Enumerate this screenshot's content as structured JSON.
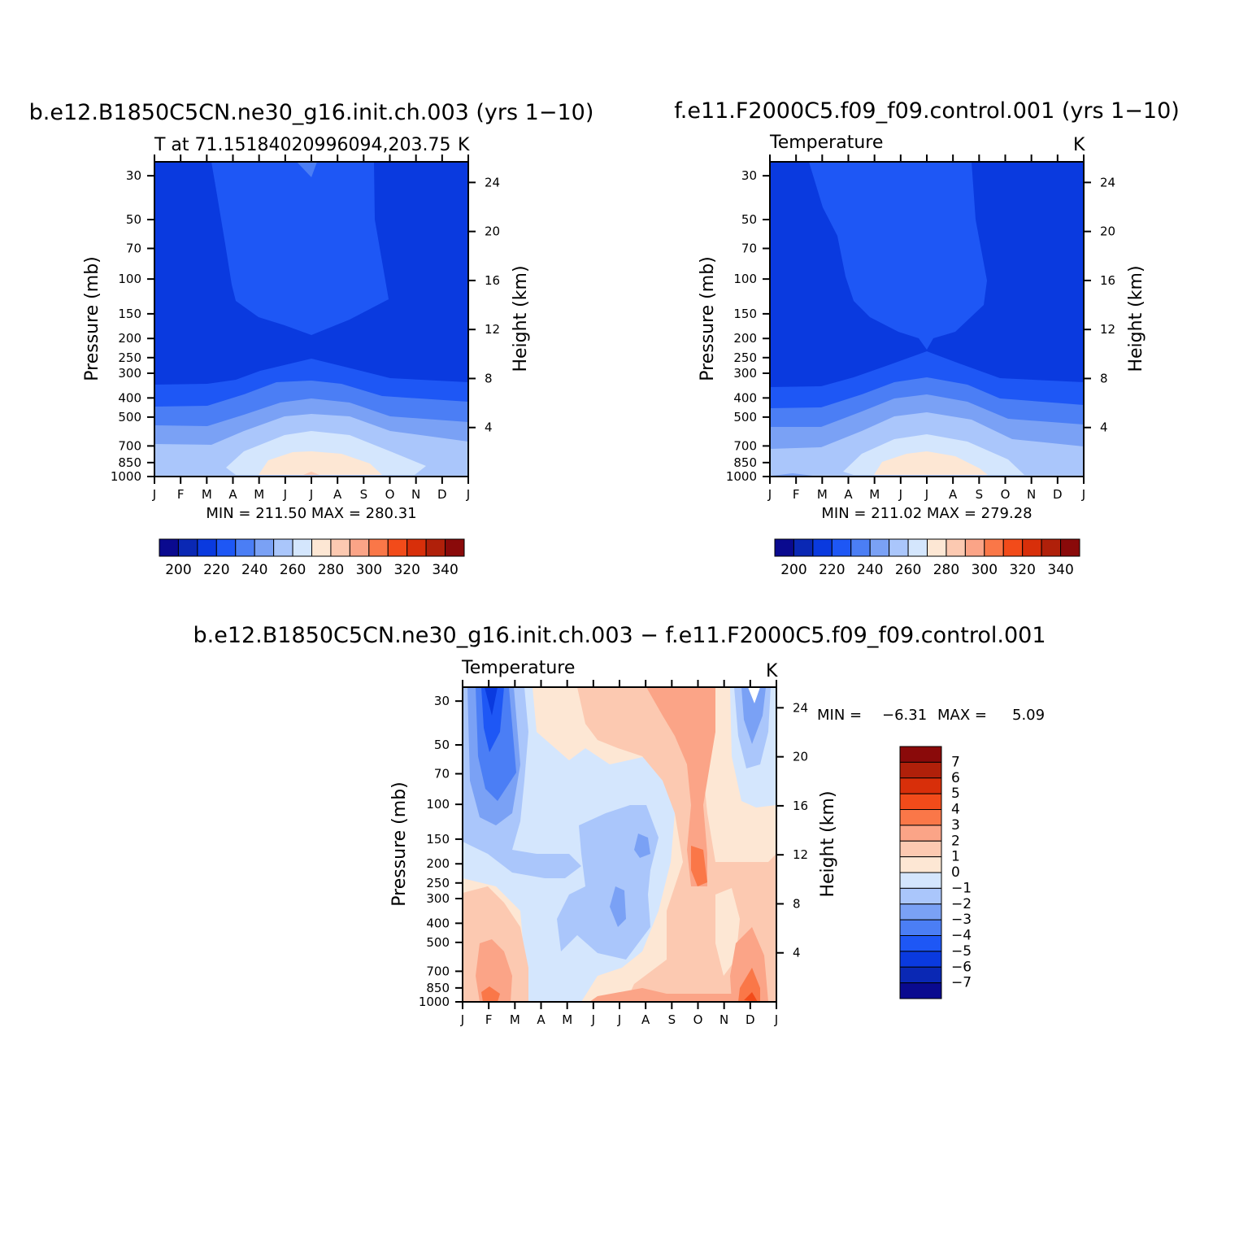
{
  "chart_data": [
    {
      "type": "heatmap",
      "title": "b.e12.B1850C5CN.ne30_g16.init.ch.003 (yrs 1−10)",
      "subtitle": "T at 71.15184020996094,203.75",
      "units": "K",
      "xlabel": "",
      "ylabel": "Pressure (mb)",
      "y2label": "Height (km)",
      "x_ticks": [
        "J",
        "F",
        "M",
        "A",
        "M",
        "J",
        "J",
        "A",
        "S",
        "O",
        "N",
        "D",
        "J"
      ],
      "y_ticks": [
        "30",
        "50",
        "70",
        "100",
        "150",
        "200",
        "250",
        "300",
        "400",
        "500",
        "700",
        "850",
        "1000"
      ],
      "y2_ticks": [
        "24",
        "20",
        "16",
        "12",
        "8",
        "4"
      ],
      "stats": "MIN = 211.50 MAX = 280.31",
      "min": 211.5,
      "max": 280.31,
      "colorbar_labels": [
        "200",
        "220",
        "240",
        "260",
        "280",
        "300",
        "320",
        "340"
      ],
      "levels": [
        200,
        210,
        220,
        230,
        240,
        250,
        260,
        270,
        280,
        290,
        300,
        310,
        320,
        330,
        340,
        350
      ],
      "colors": [
        "#0a0a8f",
        "#0a28b4",
        "#0a3adf",
        "#1e57f5",
        "#4b7ef5",
        "#7aa1f5",
        "#aac6fb",
        "#d4e6fd",
        "#fde7d4",
        "#fcc9b1",
        "#fba487",
        "#fa7748",
        "#f24b1a",
        "#d82f0a",
        "#b0200a",
        "#8a0a0a"
      ],
      "series": [
        {
          "name": "",
          "x": [
            "Jan",
            "Feb",
            "Mar",
            "Apr",
            "May",
            "Jun",
            "Jul",
            "Aug",
            "Sep",
            "Oct",
            "Nov",
            "Dec",
            "Jan"
          ]
        }
      ]
    },
    {
      "type": "heatmap",
      "title": "f.e11.F2000C5.f09_f09.control.001 (yrs 1−10)",
      "subtitle": "Temperature",
      "units": "K",
      "xlabel": "",
      "ylabel": "Pressure (mb)",
      "y2label": "Height (km)",
      "x_ticks": [
        "J",
        "F",
        "M",
        "A",
        "M",
        "J",
        "J",
        "A",
        "S",
        "O",
        "N",
        "D",
        "J"
      ],
      "y_ticks": [
        "30",
        "50",
        "70",
        "100",
        "150",
        "200",
        "250",
        "300",
        "400",
        "500",
        "700",
        "850",
        "1000"
      ],
      "y2_ticks": [
        "24",
        "20",
        "16",
        "12",
        "8",
        "4"
      ],
      "stats": "MIN = 211.02 MAX = 279.28",
      "min": 211.02,
      "max": 279.28,
      "colorbar_labels": [
        "200",
        "220",
        "240",
        "260",
        "280",
        "300",
        "320",
        "340"
      ]
    },
    {
      "type": "heatmap",
      "title": "b.e12.B1850C5CN.ne30_g16.init.ch.003 − f.e11.F2000C5.f09_f09.control.001",
      "subtitle": "Temperature",
      "units": "K",
      "xlabel": "",
      "ylabel": "Pressure (mb)",
      "y2label": "Height (km)",
      "x_ticks": [
        "J",
        "F",
        "M",
        "A",
        "M",
        "J",
        "J",
        "A",
        "S",
        "O",
        "N",
        "D",
        "J"
      ],
      "y_ticks": [
        "30",
        "50",
        "70",
        "100",
        "150",
        "200",
        "250",
        "300",
        "400",
        "500",
        "700",
        "850",
        "1000"
      ],
      "y2_ticks": [
        "24",
        "20",
        "16",
        "12",
        "8",
        "4"
      ],
      "stats_min_label": "MIN =",
      "stats_min": "−6.31",
      "stats_max_label": "MAX =",
      "stats_max": "5.09",
      "min": -6.31,
      "max": 5.09,
      "colorbar_labels": [
        "7",
        "6",
        "5",
        "4",
        "3",
        "2",
        "1",
        "0",
        "−1",
        "−2",
        "−3",
        "−4",
        "−5",
        "−6",
        "−7"
      ],
      "colors": [
        "#8a0a0a",
        "#b0200a",
        "#d82f0a",
        "#f24b1a",
        "#fa7748",
        "#fba487",
        "#fcc9b1",
        "#fde7d4",
        "#d4e6fd",
        "#aac6fb",
        "#7aa1f5",
        "#4b7ef5",
        "#1e57f5",
        "#0a3adf",
        "#0a28b4",
        "#0a0a8f"
      ]
    }
  ]
}
